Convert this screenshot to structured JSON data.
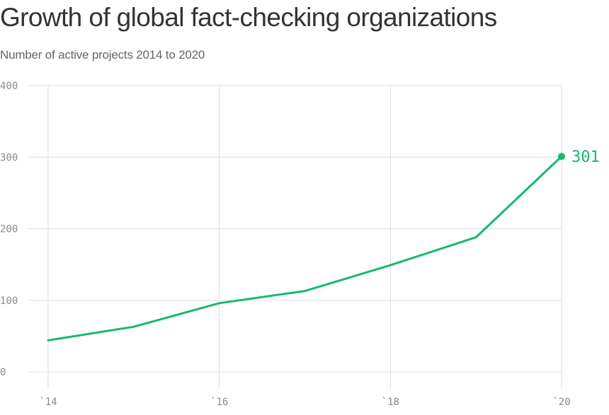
{
  "title": "Growth of global fact-checking organizations",
  "subtitle": "Number of active projects 2014 to 2020",
  "colors": {
    "line": "#16b96e",
    "grid": "#dddddd",
    "tick": "#8a8a8a"
  },
  "chart_data": {
    "type": "line",
    "title": "Growth of global fact-checking organizations",
    "subtitle": "Number of active projects 2014 to 2020",
    "xlabel": "",
    "ylabel": "",
    "x": [
      2014,
      2015,
      2016,
      2017,
      2018,
      2019,
      2020
    ],
    "values": [
      44,
      63,
      96,
      113,
      149,
      188,
      301
    ],
    "xticks": [
      2014,
      2016,
      2018,
      2020
    ],
    "xtick_labels": [
      "`14",
      "`16",
      "`18",
      "`20"
    ],
    "yticks": [
      0,
      100,
      200,
      300,
      400
    ],
    "ytick_labels": [
      "0",
      "100",
      "200",
      "300",
      "400"
    ],
    "ylim": [
      0,
      400
    ],
    "xlim": [
      2014,
      2020
    ],
    "grid": true,
    "end_label": "301"
  }
}
